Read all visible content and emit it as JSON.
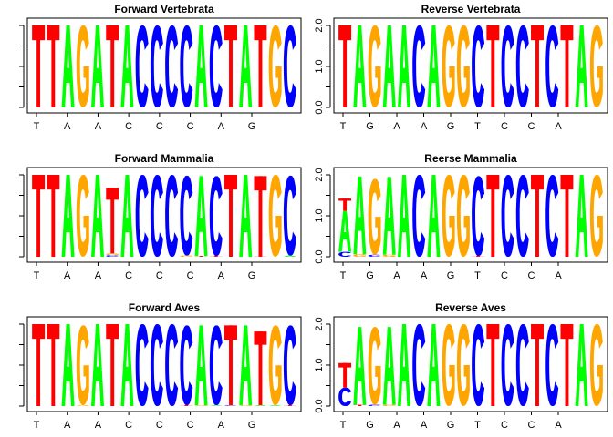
{
  "colors": {
    "A": "#00ff00",
    "C": "#0000ff",
    "G": "#ffa500",
    "T": "#ff0000"
  },
  "chart_data": [
    {
      "type": "sequence-logo",
      "title": "Forward Vertebrata",
      "xticklabels": [
        "T",
        "A",
        "A",
        "C",
        "C",
        "C",
        "A",
        "G"
      ],
      "yaxis": "left",
      "ytick_labels": [],
      "ylim": [
        0,
        2
      ],
      "positions": [
        [
          [
            "T",
            2.0
          ]
        ],
        [
          [
            "T",
            2.0
          ]
        ],
        [
          [
            "A",
            2.0
          ]
        ],
        [
          [
            "G",
            2.0
          ]
        ],
        [
          [
            "A",
            2.0
          ]
        ],
        [
          [
            "T",
            2.0
          ]
        ],
        [
          [
            "A",
            2.0
          ]
        ],
        [
          [
            "C",
            2.0
          ]
        ],
        [
          [
            "C",
            2.0
          ]
        ],
        [
          [
            "C",
            2.0
          ]
        ],
        [
          [
            "C",
            2.0
          ]
        ],
        [
          [
            "A",
            2.0
          ]
        ],
        [
          [
            "C",
            2.0
          ]
        ],
        [
          [
            "T",
            2.0
          ]
        ],
        [
          [
            "A",
            2.0
          ]
        ],
        [
          [
            "T",
            2.0
          ]
        ],
        [
          [
            "G",
            2.0
          ]
        ],
        [
          [
            "C",
            2.0
          ]
        ]
      ]
    },
    {
      "type": "sequence-logo",
      "title": "Reverse Vertebrata",
      "xticklabels": [
        "T",
        "G",
        "A",
        "A",
        "G",
        "T",
        "C",
        "C",
        "A"
      ],
      "yaxis": "left",
      "ytick_labels": [
        "0.0",
        "1.0",
        "2.0"
      ],
      "ylim": [
        0,
        2
      ],
      "positions": [
        [
          [
            "T",
            2.0
          ]
        ],
        [
          [
            "A",
            2.0
          ]
        ],
        [
          [
            "G",
            2.0
          ]
        ],
        [
          [
            "A",
            2.0
          ]
        ],
        [
          [
            "A",
            2.0
          ]
        ],
        [
          [
            "C",
            2.0
          ]
        ],
        [
          [
            "A",
            2.0
          ]
        ],
        [
          [
            "G",
            2.0
          ]
        ],
        [
          [
            "G",
            2.0
          ]
        ],
        [
          [
            "C",
            2.0
          ]
        ],
        [
          [
            "T",
            2.0
          ]
        ],
        [
          [
            "C",
            2.0
          ]
        ],
        [
          [
            "C",
            2.0
          ]
        ],
        [
          [
            "T",
            2.0
          ]
        ],
        [
          [
            "C",
            2.0
          ]
        ],
        [
          [
            "T",
            2.0
          ]
        ],
        [
          [
            "A",
            2.0
          ]
        ],
        [
          [
            "G",
            2.0
          ]
        ]
      ]
    },
    {
      "type": "sequence-logo",
      "title": "Forward Mammalia",
      "xticklabels": [
        "T",
        "A",
        "A",
        "C",
        "C",
        "C",
        "A",
        "G"
      ],
      "yaxis": "left",
      "ytick_labels": [],
      "ylim": [
        0,
        2
      ],
      "positions": [
        [
          [
            "T",
            2.0
          ]
        ],
        [
          [
            "T",
            2.0
          ]
        ],
        [
          [
            "A",
            2.0
          ]
        ],
        [
          [
            "G",
            2.0
          ]
        ],
        [
          [
            "A",
            2.0
          ]
        ],
        [
          [
            "C",
            0.04
          ],
          [
            "G",
            0.04
          ],
          [
            "T",
            1.6
          ]
        ],
        [
          [
            "A",
            2.0
          ]
        ],
        [
          [
            "C",
            2.0
          ]
        ],
        [
          [
            "C",
            2.0
          ]
        ],
        [
          [
            "C",
            2.0
          ]
        ],
        [
          [
            "G",
            0.03
          ],
          [
            "C",
            1.95
          ]
        ],
        [
          [
            "T",
            0.02
          ],
          [
            "A",
            1.95
          ]
        ],
        [
          [
            "T",
            0.02
          ],
          [
            "C",
            1.95
          ]
        ],
        [
          [
            "T",
            2.0
          ]
        ],
        [
          [
            "A",
            2.0
          ]
        ],
        [
          [
            "T",
            0.02
          ],
          [
            "T",
            1.95
          ]
        ],
        [
          [
            "G",
            2.0
          ]
        ],
        [
          [
            "A",
            0.03
          ],
          [
            "C",
            1.95
          ]
        ]
      ]
    },
    {
      "type": "sequence-logo",
      "title": "Reerse Mammalia",
      "xticklabels": [
        "T",
        "G",
        "A",
        "A",
        "G",
        "T",
        "C",
        "C",
        "A"
      ],
      "yaxis": "left",
      "ytick_labels": [
        "0.0",
        "1.0",
        "2.0"
      ],
      "ylim": [
        0,
        2
      ],
      "positions": [
        [
          [
            "C",
            0.12
          ],
          [
            "A",
            1.0
          ],
          [
            "T",
            0.3
          ]
        ],
        [
          [
            "G",
            0.06
          ],
          [
            "A",
            1.9
          ]
        ],
        [
          [
            "C",
            0.05
          ],
          [
            "G",
            1.85
          ]
        ],
        [
          [
            "G",
            0.05
          ],
          [
            "A",
            1.9
          ]
        ],
        [
          [
            "A",
            2.0
          ]
        ],
        [
          [
            "C",
            2.0
          ]
        ],
        [
          [
            "A",
            2.0
          ]
        ],
        [
          [
            "G",
            2.0
          ]
        ],
        [
          [
            "G",
            2.0
          ]
        ],
        [
          [
            "T",
            0.02
          ],
          [
            "C",
            1.95
          ]
        ],
        [
          [
            "T",
            2.0
          ]
        ],
        [
          [
            "C",
            2.0
          ]
        ],
        [
          [
            "C",
            2.0
          ]
        ],
        [
          [
            "T",
            2.0
          ]
        ],
        [
          [
            "C",
            2.0
          ]
        ],
        [
          [
            "T",
            2.0
          ]
        ],
        [
          [
            "A",
            2.0
          ]
        ],
        [
          [
            "G",
            2.0
          ]
        ]
      ]
    },
    {
      "type": "sequence-logo",
      "title": "Forward Aves",
      "xticklabels": [
        "T",
        "A",
        "A",
        "C",
        "C",
        "C",
        "A",
        "G"
      ],
      "yaxis": "left",
      "ytick_labels": [],
      "ylim": [
        0,
        2
      ],
      "positions": [
        [
          [
            "T",
            2.0
          ]
        ],
        [
          [
            "T",
            2.0
          ]
        ],
        [
          [
            "A",
            2.0
          ]
        ],
        [
          [
            "G",
            0.02
          ],
          [
            "G",
            1.95
          ]
        ],
        [
          [
            "A",
            2.0
          ]
        ],
        [
          [
            "T",
            2.0
          ]
        ],
        [
          [
            "A",
            2.0
          ]
        ],
        [
          [
            "C",
            2.0
          ]
        ],
        [
          [
            "C",
            2.0
          ]
        ],
        [
          [
            "C",
            2.0
          ]
        ],
        [
          [
            "T",
            0.02
          ],
          [
            "C",
            1.95
          ]
        ],
        [
          [
            "G",
            0.02
          ],
          [
            "A",
            1.95
          ]
        ],
        [
          [
            "A",
            0.02
          ],
          [
            "C",
            1.95
          ]
        ],
        [
          [
            "C",
            0.02
          ],
          [
            "T",
            1.95
          ]
        ],
        [
          [
            "G",
            0.02
          ],
          [
            "A",
            1.95
          ]
        ],
        [
          [
            "A",
            0.02
          ],
          [
            "T",
            1.8
          ]
        ],
        [
          [
            "A",
            0.02
          ],
          [
            "G",
            1.95
          ]
        ],
        [
          [
            "T",
            0.02
          ],
          [
            "C",
            1.95
          ]
        ]
      ]
    },
    {
      "type": "sequence-logo",
      "title": "Reverse Aves",
      "xticklabels": [
        "T",
        "G",
        "A",
        "A",
        "G",
        "T",
        "C",
        "C",
        "A"
      ],
      "yaxis": "left",
      "ytick_labels": [
        "0.0",
        "1.0",
        "2.0"
      ],
      "ylim": [
        0,
        2
      ],
      "positions": [
        [
          [
            "C",
            0.45
          ],
          [
            "T",
            0.6
          ]
        ],
        [
          [
            "T",
            0.03
          ],
          [
            "A",
            1.9
          ]
        ],
        [
          [
            "C",
            0.03
          ],
          [
            "G",
            1.9
          ]
        ],
        [
          [
            "G",
            0.03
          ],
          [
            "A",
            1.9
          ]
        ],
        [
          [
            "A",
            2.0
          ]
        ],
        [
          [
            "C",
            2.0
          ]
        ],
        [
          [
            "A",
            2.0
          ]
        ],
        [
          [
            "G",
            2.0
          ]
        ],
        [
          [
            "G",
            2.0
          ]
        ],
        [
          [
            "C",
            2.0
          ]
        ],
        [
          [
            "T",
            2.0
          ]
        ],
        [
          [
            "C",
            2.0
          ]
        ],
        [
          [
            "C",
            2.0
          ]
        ],
        [
          [
            "T",
            2.0
          ]
        ],
        [
          [
            "C",
            2.0
          ]
        ],
        [
          [
            "T",
            2.0
          ]
        ],
        [
          [
            "A",
            2.0
          ]
        ],
        [
          [
            "G",
            2.0
          ]
        ]
      ]
    }
  ]
}
